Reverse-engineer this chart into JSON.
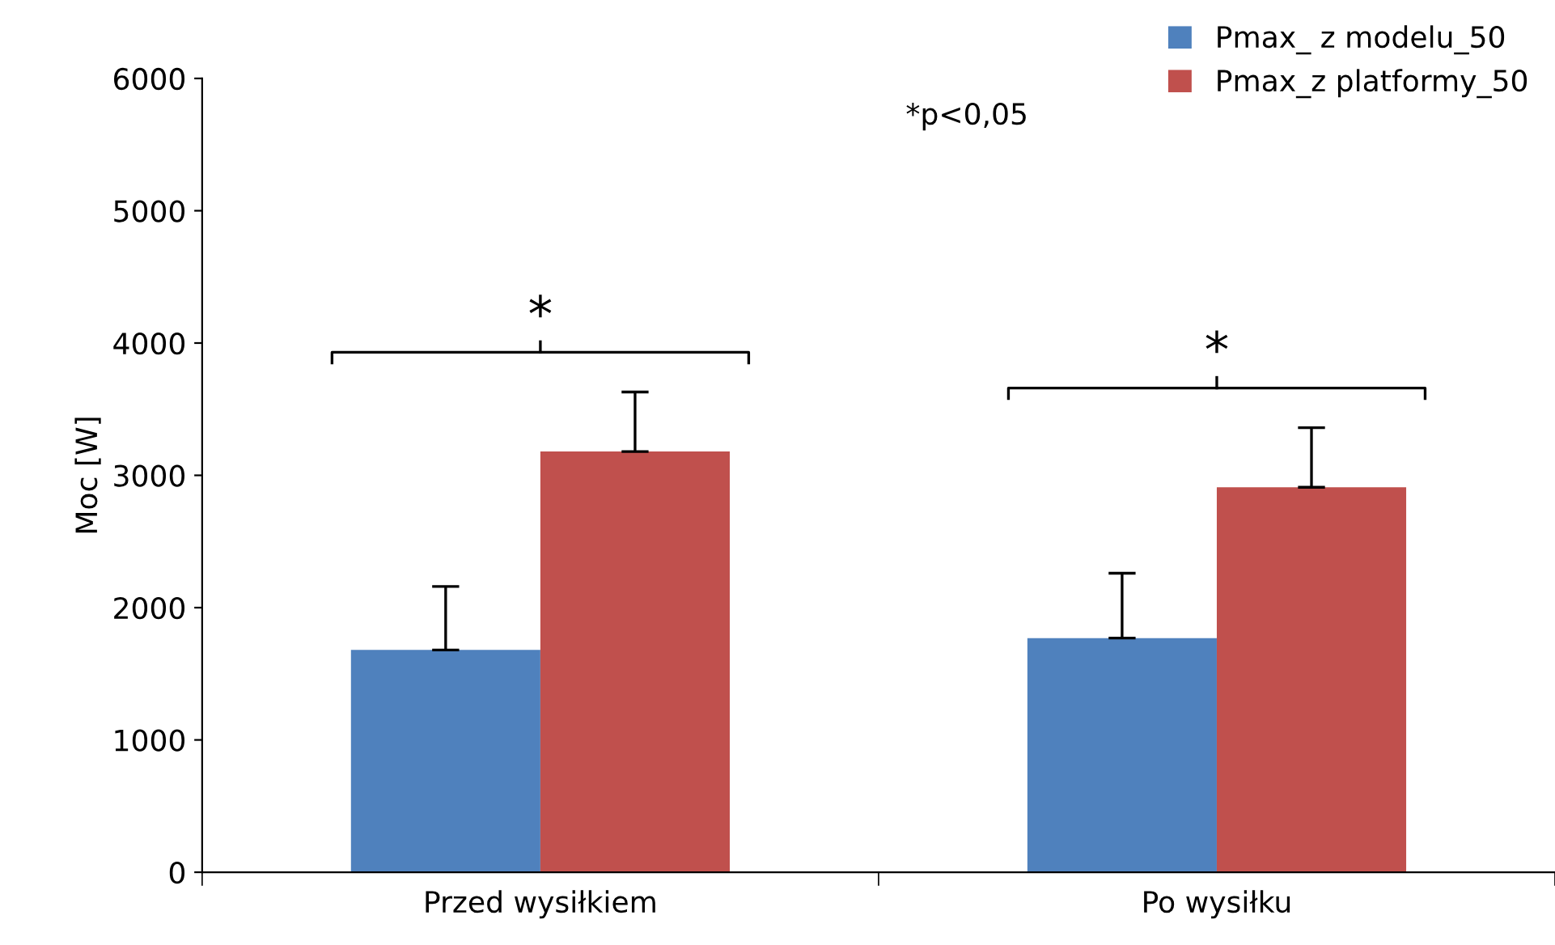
{
  "chart_data": {
    "type": "bar",
    "ylabel": "Moc [W]",
    "categories": [
      "Przed wysiłkiem",
      "Po wysiłku"
    ],
    "series": [
      {
        "name": "Pmax_ z modelu_50",
        "color": "#4f81bd",
        "values": [
          1680,
          1770
        ],
        "errors": [
          [
            1680,
            2160
          ],
          [
            1770,
            2260
          ]
        ]
      },
      {
        "name": "Pmax_z platformy_50",
        "color": "#c0504d",
        "values": [
          3180,
          2910
        ],
        "errors": [
          [
            3180,
            3630
          ],
          [
            2910,
            3360
          ]
        ]
      }
    ],
    "ylim": [
      0,
      6000
    ],
    "yticks": [
      0,
      1000,
      2000,
      3000,
      4000,
      5000,
      6000
    ],
    "grid": false,
    "legend": "top right",
    "annotations": [
      "*",
      "*",
      "*p<0,05"
    ]
  }
}
